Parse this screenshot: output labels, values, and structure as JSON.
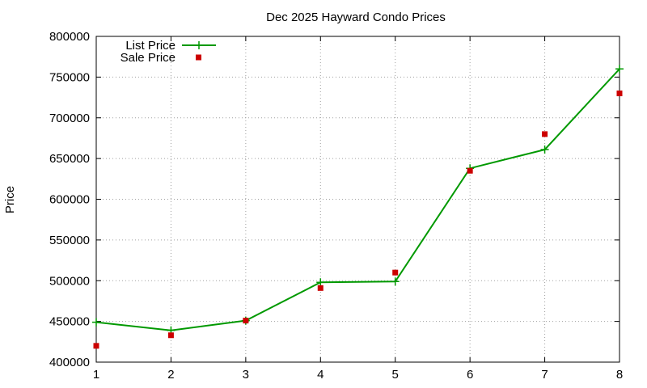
{
  "chart_data": {
    "type": "line",
    "title": "Dec 2025 Hayward Condo Prices",
    "xlabel": "",
    "ylabel": "Price",
    "xlim": [
      1,
      8
    ],
    "ylim": [
      400000,
      800000
    ],
    "x_ticks": [
      "1",
      "2",
      "3",
      "4",
      "5",
      "6",
      "7",
      "8"
    ],
    "y_ticks": [
      "400000",
      "450000",
      "500000",
      "550000",
      "600000",
      "650000",
      "700000",
      "750000",
      "800000"
    ],
    "grid": true,
    "legend_position": "top-left",
    "x": [
      1,
      2,
      3,
      4,
      5,
      6,
      7,
      8
    ],
    "series": [
      {
        "name": "List Price",
        "style": "line-with-plus-markers",
        "color": "#009900",
        "values": [
          449000,
          439000,
          451000,
          498000,
          499000,
          638000,
          661000,
          760000
        ]
      },
      {
        "name": "Sale Price",
        "style": "square-points",
        "color": "#cc0000",
        "values": [
          420000,
          433000,
          451000,
          491000,
          510000,
          635000,
          680000,
          730000
        ]
      }
    ]
  }
}
